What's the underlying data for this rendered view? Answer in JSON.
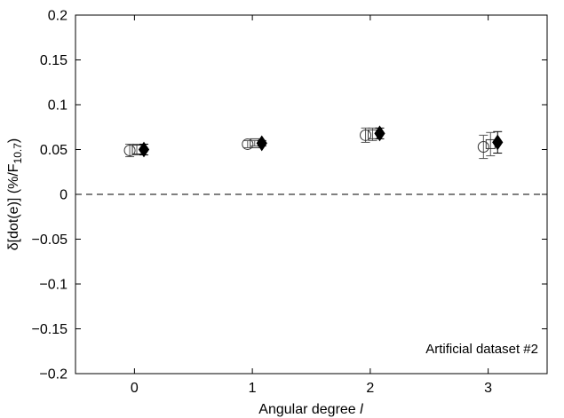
{
  "chart_data": {
    "type": "scatter",
    "xlabel": "Angular degree ",
    "xlabel_italic": "l",
    "ylabel_main": "δ[dot(e)] (%/F",
    "ylabel_sub": "10.7",
    "ylabel_close": ")",
    "xlim": [
      -0.5,
      3.5
    ],
    "ylim": [
      -0.2,
      0.2
    ],
    "x_ticks": [
      {
        "value": 0,
        "label": "0"
      },
      {
        "value": 1,
        "label": "1"
      },
      {
        "value": 2,
        "label": "2"
      },
      {
        "value": 3,
        "label": "3"
      }
    ],
    "y_ticks": [
      {
        "value": 0.2,
        "label": "0.2"
      },
      {
        "value": 0.15,
        "label": "0.15"
      },
      {
        "value": 0.1,
        "label": "0.1"
      },
      {
        "value": 0.05,
        "label": "0.05"
      },
      {
        "value": 0,
        "label": "0"
      },
      {
        "value": -0.05,
        "label": "−0.05"
      },
      {
        "value": -0.1,
        "label": "−0.1"
      },
      {
        "value": -0.15,
        "label": "−0.15"
      },
      {
        "value": -0.2,
        "label": "−0.2"
      }
    ],
    "reference_line": {
      "y": 0,
      "style": "dashed"
    },
    "annotation": "Artificial dataset #2",
    "annotation_position": "bottom-right",
    "grid": false,
    "series": [
      {
        "marker": "open-circle",
        "points": [
          {
            "x": -0.04,
            "y": 0.049,
            "err": 0.007
          },
          {
            "x": 0.96,
            "y": 0.056,
            "err": 0.004
          },
          {
            "x": 1.96,
            "y": 0.066,
            "err": 0.008
          },
          {
            "x": 2.96,
            "y": 0.053,
            "err": 0.013
          }
        ]
      },
      {
        "marker": "open-square",
        "points": [
          {
            "x": 0.02,
            "y": 0.05,
            "err": 0.006
          },
          {
            "x": 1.02,
            "y": 0.057,
            "err": 0.003
          },
          {
            "x": 2.02,
            "y": 0.067,
            "err": 0.007
          },
          {
            "x": 3.02,
            "y": 0.056,
            "err": 0.013
          }
        ]
      },
      {
        "marker": "filled-diamond",
        "points": [
          {
            "x": 0.08,
            "y": 0.05,
            "err": 0.006
          },
          {
            "x": 1.08,
            "y": 0.057,
            "err": 0.003
          },
          {
            "x": 2.08,
            "y": 0.068,
            "err": 0.006
          },
          {
            "x": 3.08,
            "y": 0.058,
            "err": 0.012
          }
        ]
      }
    ]
  }
}
